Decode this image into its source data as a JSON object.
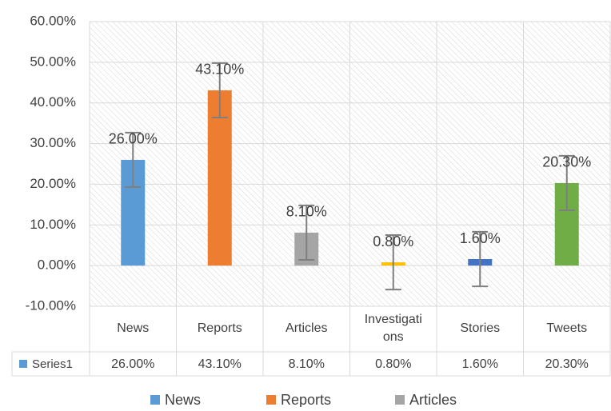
{
  "chart_data": {
    "type": "bar",
    "categories": [
      "News",
      "Reports",
      "Articles",
      "Investigations",
      "Stories",
      "Tweets"
    ],
    "series": [
      {
        "name": "Series1",
        "values": [
          26.0,
          43.1,
          8.1,
          0.8,
          1.6,
          20.3
        ],
        "value_labels": [
          "26.00%",
          "43.10%",
          "8.10%",
          "0.80%",
          "1.60%",
          "20.30%"
        ],
        "errors": [
          6.7,
          6.7,
          6.7,
          6.7,
          6.7,
          6.7
        ],
        "colors": [
          "#5b9bd5",
          "#ed7d31",
          "#a5a5a5",
          "#ffc000",
          "#4472c4",
          "#70ad47"
        ]
      }
    ],
    "ylim": [
      -10,
      60
    ],
    "yticks": [
      {
        "value": -10,
        "label": "-10.00%"
      },
      {
        "value": 0,
        "label": "0.00%"
      },
      {
        "value": 10,
        "label": "10.00%"
      },
      {
        "value": 20,
        "label": "20.00%"
      },
      {
        "value": 30,
        "label": "30.00%"
      },
      {
        "value": 40,
        "label": "40.00%"
      },
      {
        "value": 50,
        "label": "50.00%"
      },
      {
        "value": 60,
        "label": "60.00%"
      }
    ],
    "grid": true
  }
}
